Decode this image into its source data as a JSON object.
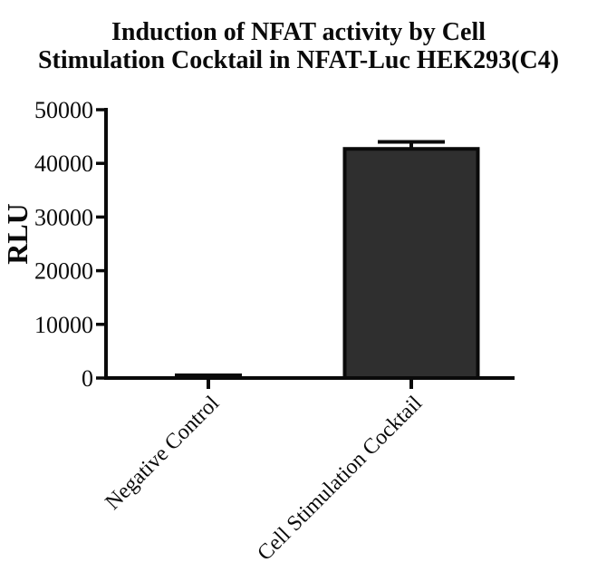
{
  "header": {
    "title_line1": "Induction of NFAT activity by Cell",
    "title_line2": "Stimulation Cocktail in NFAT-Luc HEK293(C4)"
  },
  "chart_data": {
    "type": "bar",
    "title": "Induction of NFAT activity by Cell Stimulation Cocktail in NFAT-Luc HEK293(C4)",
    "xlabel": "",
    "ylabel": "RLU",
    "categories": [
      "Negative Control",
      "Cell Stimulation Cocktail"
    ],
    "values": [
      200,
      42700
    ],
    "errors_upper": [
      300,
      1300
    ],
    "error_style": "upper error bar with cap",
    "ylim": [
      0,
      50000
    ],
    "ytick_interval": 10000,
    "ytick_labels": [
      "0",
      "10000",
      "20000",
      "30000",
      "40000",
      "50000"
    ],
    "grid": false,
    "legend": "none",
    "category_label_rotation_deg": 45,
    "colors": {
      "bar_fill": "#2f2f2f",
      "bar_border": "#0a0a0a",
      "axis": "#0a0a0a",
      "text": "#0a0a0a",
      "background": "#ffffff"
    }
  }
}
